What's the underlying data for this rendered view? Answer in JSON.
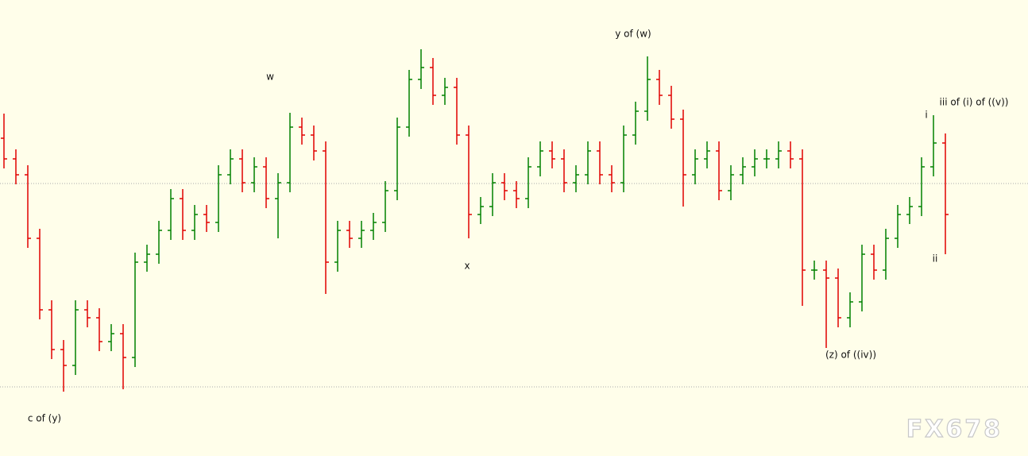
{
  "chart_data": {
    "type": "ohlc",
    "ylim": [
      0,
      574
    ],
    "up_color": "#008000",
    "down_color": "#e00000",
    "hlines": [
      343,
      87
    ],
    "annotations": [
      "w",
      "x",
      "y of (w)",
      "c of (y)",
      "(z) of ((iv))",
      "i",
      "ii",
      "iii of (i) of ((v))"
    ],
    "watermark": "FX678",
    "open": [
      400,
      374,
      354,
      274,
      184,
      134,
      114,
      184,
      174,
      144,
      154,
      124,
      244,
      254,
      284,
      324,
      284,
      304,
      294,
      354,
      374,
      344,
      364,
      324,
      344,
      414,
      404,
      384,
      244,
      284,
      274,
      284,
      294,
      334,
      414,
      474,
      489,
      454,
      464,
      404,
      304,
      314,
      344,
      334,
      324,
      364,
      384,
      374,
      344,
      354,
      384,
      354,
      344,
      404,
      434,
      474,
      454,
      424,
      354,
      374,
      384,
      334,
      354,
      364,
      374,
      374,
      384,
      374,
      234,
      234,
      224,
      174,
      194,
      254,
      234,
      274,
      304,
      314,
      364,
      394
    ],
    "high": [
      431,
      386,
      366,
      286,
      196,
      146,
      196,
      196,
      186,
      166,
      166,
      256,
      266,
      296,
      336,
      336,
      316,
      316,
      366,
      386,
      386,
      376,
      376,
      356,
      432,
      426,
      416,
      396,
      296,
      296,
      296,
      306,
      346,
      426,
      486,
      512,
      501,
      476,
      476,
      416,
      326,
      356,
      356,
      346,
      376,
      396,
      396,
      386,
      366,
      396,
      396,
      366,
      416,
      446,
      503,
      486,
      466,
      436,
      386,
      396,
      396,
      366,
      376,
      386,
      386,
      396,
      396,
      386,
      246,
      246,
      236,
      206,
      266,
      266,
      286,
      316,
      326,
      376,
      429,
      406
    ],
    "low": [
      362,
      342,
      262,
      172,
      122,
      81,
      102,
      162,
      132,
      132,
      84,
      112,
      232,
      242,
      272,
      272,
      272,
      282,
      282,
      342,
      332,
      332,
      312,
      274,
      332,
      392,
      372,
      204,
      232,
      262,
      262,
      272,
      282,
      322,
      402,
      462,
      442,
      442,
      392,
      274,
      292,
      302,
      322,
      312,
      312,
      352,
      362,
      332,
      332,
      342,
      342,
      332,
      332,
      392,
      422,
      442,
      412,
      314,
      342,
      362,
      322,
      322,
      342,
      352,
      362,
      362,
      362,
      189,
      222,
      136,
      162,
      162,
      182,
      222,
      222,
      262,
      292,
      302,
      352,
      254
    ],
    "close": [
      374,
      354,
      274,
      184,
      134,
      114,
      184,
      174,
      144,
      154,
      124,
      244,
      254,
      284,
      324,
      284,
      304,
      294,
      354,
      374,
      344,
      364,
      324,
      344,
      414,
      404,
      384,
      244,
      284,
      274,
      284,
      294,
      334,
      414,
      474,
      489,
      454,
      464,
      404,
      304,
      314,
      344,
      334,
      324,
      364,
      384,
      374,
      344,
      354,
      384,
      354,
      344,
      404,
      434,
      474,
      454,
      424,
      354,
      374,
      384,
      334,
      354,
      364,
      374,
      374,
      384,
      374,
      234,
      234,
      224,
      174,
      194,
      254,
      234,
      274,
      304,
      314,
      364,
      394,
      304
    ]
  }
}
